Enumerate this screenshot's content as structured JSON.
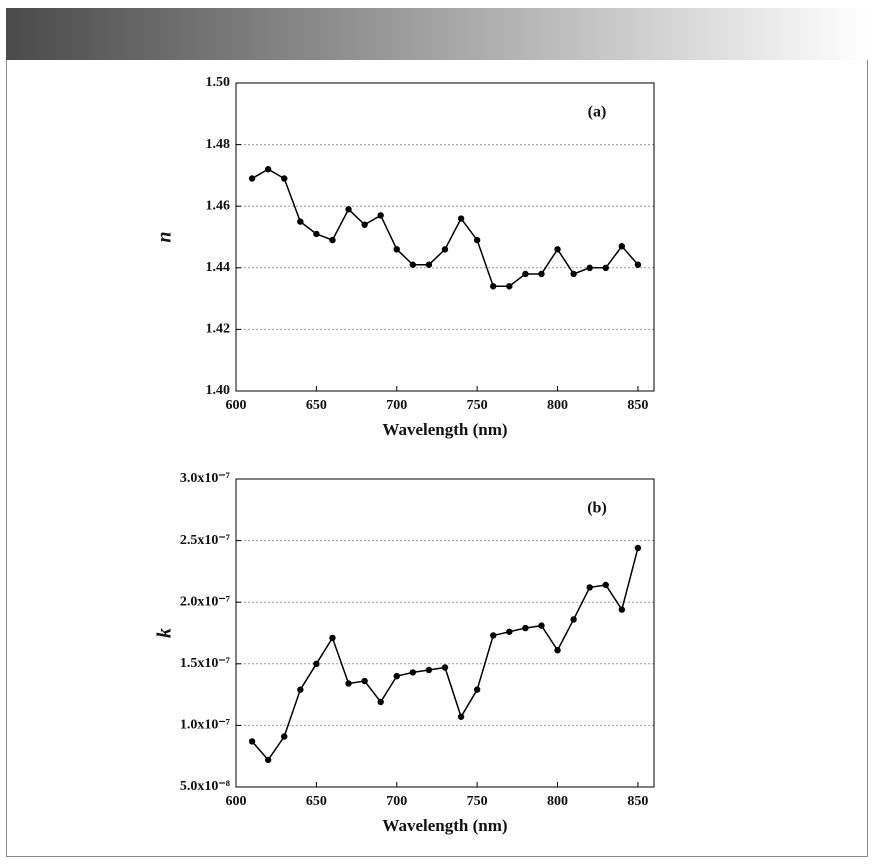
{
  "chart_data": [
    {
      "type": "line",
      "annotation": "(a)",
      "x_label": "Wavelength (nm)",
      "y_label": "n",
      "x": [
        610,
        620,
        630,
        640,
        650,
        660,
        670,
        680,
        690,
        700,
        710,
        720,
        730,
        740,
        750,
        760,
        770,
        780,
        790,
        800,
        810,
        820,
        830,
        840,
        850
      ],
      "series": [
        {
          "name": "n",
          "color": "#000000",
          "values": [
            1.469,
            1.472,
            1.469,
            1.455,
            1.451,
            1.449,
            1.459,
            1.454,
            1.457,
            1.446,
            1.441,
            1.441,
            1.446,
            1.456,
            1.449,
            1.434,
            1.434,
            1.438,
            1.438,
            1.446,
            1.438,
            1.44,
            1.44,
            1.447,
            1.441
          ]
        }
      ],
      "xlim": [
        600,
        860
      ],
      "xticks": [
        600,
        650,
        700,
        750,
        800,
        850
      ],
      "ylim": [
        1.4,
        1.5
      ],
      "yticks": [
        {
          "value": 1.4,
          "label": "1.40"
        },
        {
          "value": 1.42,
          "label": "1.42"
        },
        {
          "value": 1.44,
          "label": "1.44"
        },
        {
          "value": 1.46,
          "label": "1.46"
        },
        {
          "value": 1.48,
          "label": "1.48"
        },
        {
          "value": 1.5,
          "label": "1.50"
        }
      ],
      "grid": true
    },
    {
      "type": "line",
      "annotation": "(b)",
      "x_label": "Wavelength (nm)",
      "y_label": "k",
      "x": [
        610,
        620,
        630,
        640,
        650,
        660,
        670,
        680,
        690,
        700,
        710,
        720,
        730,
        740,
        750,
        760,
        770,
        780,
        790,
        800,
        810,
        820,
        830,
        840,
        850
      ],
      "series": [
        {
          "name": "k",
          "color": "#000000",
          "values": [
            8.7e-08,
            7.2e-08,
            9.1e-08,
            1.29e-07,
            1.5e-07,
            1.71e-07,
            1.34e-07,
            1.36e-07,
            1.19e-07,
            1.4e-07,
            1.43e-07,
            1.45e-07,
            1.47e-07,
            1.07e-07,
            1.29e-07,
            1.73e-07,
            1.76e-07,
            1.79e-07,
            1.81e-07,
            1.61e-07,
            1.86e-07,
            2.12e-07,
            2.14e-07,
            1.94e-07,
            2.44e-07
          ]
        }
      ],
      "xlim": [
        600,
        860
      ],
      "xticks": [
        600,
        650,
        700,
        750,
        800,
        850
      ],
      "ylim": [
        5e-08,
        3e-07
      ],
      "yticks": [
        {
          "value": 5e-08,
          "label": "5.0x10⁻⁸"
        },
        {
          "value": 1e-07,
          "label": "1.0x10⁻⁷"
        },
        {
          "value": 1.5e-07,
          "label": "1.5x10⁻⁷"
        },
        {
          "value": 2e-07,
          "label": "2.0x10⁻⁷"
        },
        {
          "value": 2.5e-07,
          "label": "2.5x10⁻⁷"
        },
        {
          "value": 3e-07,
          "label": "3.0x10⁻⁷"
        }
      ],
      "grid": true
    }
  ]
}
